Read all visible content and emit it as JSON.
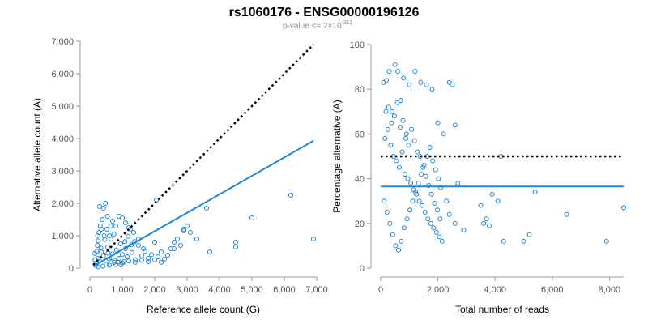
{
  "title": "rs1060176 - ENSG00000196126",
  "subtitle_prefix": "p-value <= 2×10",
  "subtitle_exponent": "-311",
  "colors": {
    "points": "#1f86d6",
    "fit": "#1f86d6",
    "reference": "#000000"
  },
  "chart_data": [
    {
      "type": "scatter",
      "xlabel": "Reference allele count (G)",
      "ylabel": "Alternative allele count (A)",
      "xlim": [
        0,
        7000
      ],
      "ylim": [
        0,
        7000
      ],
      "xticks": [
        0,
        1000,
        2000,
        3000,
        4000,
        5000,
        6000,
        7000
      ],
      "yticks": [
        0,
        1000,
        2000,
        3000,
        4000,
        5000,
        6000,
        7000
      ],
      "xtick_labels": [
        "0",
        "1,000",
        "2,000",
        "3,000",
        "4,000",
        "5,000",
        "6,000",
        "7,000"
      ],
      "ytick_labels": [
        "0",
        "1,000",
        "2,000",
        "3,000",
        "4,000",
        "5,000",
        "6,000",
        "7,000"
      ],
      "reference_line": {
        "name": "expected (50%)",
        "style": "dotted",
        "points": [
          [
            100,
            100
          ],
          [
            6900,
            6900
          ]
        ]
      },
      "fit_line": {
        "name": "fit",
        "style": "solid",
        "points": [
          [
            100,
            55
          ],
          [
            6900,
            3930
          ]
        ]
      },
      "points": [
        [
          200,
          150
        ],
        [
          250,
          300
        ],
        [
          300,
          220
        ],
        [
          350,
          500
        ],
        [
          420,
          380
        ],
        [
          500,
          120
        ],
        [
          550,
          650
        ],
        [
          600,
          280
        ],
        [
          650,
          900
        ],
        [
          700,
          440
        ],
        [
          750,
          180
        ],
        [
          820,
          560
        ],
        [
          900,
          300
        ],
        [
          950,
          750
        ],
        [
          1000,
          420
        ],
        [
          1050,
          200
        ],
        [
          1100,
          600
        ],
        [
          1150,
          350
        ],
        [
          1200,
          1250
        ],
        [
          1300,
          480
        ],
        [
          1400,
          260
        ],
        [
          1500,
          700
        ],
        [
          1600,
          380
        ],
        [
          1700,
          520
        ],
        [
          1800,
          300
        ],
        [
          150,
          450
        ],
        [
          180,
          80
        ],
        [
          230,
          700
        ],
        [
          280,
          1100
        ],
        [
          320,
          1300
        ],
        [
          380,
          1500
        ],
        [
          420,
          1850
        ],
        [
          480,
          2000
        ],
        [
          300,
          1900
        ],
        [
          520,
          1200
        ],
        [
          600,
          1000
        ],
        [
          700,
          1450
        ],
        [
          800,
          1300
        ],
        [
          900,
          1600
        ],
        [
          1000,
          1550
        ],
        [
          1100,
          1400
        ],
        [
          1250,
          1200
        ],
        [
          1350,
          1100
        ],
        [
          1500,
          900
        ],
        [
          1650,
          600
        ],
        [
          1900,
          420
        ],
        [
          2000,
          800
        ],
        [
          2100,
          350
        ],
        [
          2200,
          500
        ],
        [
          2300,
          280
        ],
        [
          2400,
          400
        ],
        [
          2500,
          600
        ],
        [
          2600,
          800
        ],
        [
          2700,
          900
        ],
        [
          2800,
          700
        ],
        [
          2900,
          1200
        ],
        [
          3000,
          1300
        ],
        [
          3100,
          1100
        ],
        [
          3300,
          900
        ],
        [
          3700,
          500
        ],
        [
          3600,
          1850
        ],
        [
          4500,
          800
        ],
        [
          4500,
          650
        ],
        [
          5000,
          1550
        ],
        [
          6200,
          2250
        ],
        [
          6900,
          900
        ],
        [
          2050,
          2100
        ],
        [
          2900,
          1150
        ],
        [
          2600,
          600
        ],
        [
          250,
          40
        ],
        [
          400,
          60
        ],
        [
          600,
          90
        ],
        [
          800,
          110
        ],
        [
          1000,
          160
        ],
        [
          1200,
          220
        ],
        [
          1400,
          180
        ],
        [
          1600,
          240
        ],
        [
          1800,
          200
        ],
        [
          2000,
          260
        ],
        [
          2200,
          180
        ],
        [
          160,
          260
        ],
        [
          210,
          520
        ],
        [
          260,
          840
        ],
        [
          340,
          620
        ],
        [
          460,
          880
        ],
        [
          560,
          460
        ],
        [
          660,
          320
        ],
        [
          760,
          240
        ],
        [
          860,
          180
        ],
        [
          960,
          100
        ],
        [
          1080,
          820
        ],
        [
          1180,
          980
        ],
        [
          1280,
          720
        ],
        [
          1380,
          820
        ],
        [
          440,
          1000
        ],
        [
          360,
          1200
        ],
        [
          240,
          1000
        ],
        [
          540,
          1600
        ],
        [
          640,
          1300
        ],
        [
          740,
          1050
        ]
      ]
    },
    {
      "type": "scatter",
      "xlabel": "Total number of reads",
      "ylabel": "Percentage alternative (A)",
      "xlim": [
        0,
        8500
      ],
      "ylim": [
        0,
        100
      ],
      "xticks": [
        0,
        2000,
        4000,
        6000,
        8000
      ],
      "yticks": [
        0,
        20,
        40,
        60,
        80,
        100
      ],
      "xtick_labels": [
        "0",
        "2,000",
        "4,000",
        "6,000",
        "8,000"
      ],
      "ytick_labels": [
        "0",
        "20",
        "40",
        "60",
        "80",
        "100"
      ],
      "reference_line": {
        "name": "expected (50%)",
        "style": "dotted",
        "points": [
          [
            0,
            50
          ],
          [
            8500,
            50
          ]
        ]
      },
      "fit_line": {
        "name": "fit",
        "style": "solid",
        "points": [
          [
            0,
            36.5
          ],
          [
            8500,
            36.5
          ]
        ]
      },
      "points": [
        [
          100,
          83
        ],
        [
          200,
          84
        ],
        [
          300,
          88
        ],
        [
          400,
          70
        ],
        [
          500,
          91
        ],
        [
          600,
          88
        ],
        [
          700,
          75
        ],
        [
          800,
          85
        ],
        [
          900,
          60
        ],
        [
          1000,
          82
        ],
        [
          1200,
          88
        ],
        [
          1400,
          83
        ],
        [
          1600,
          82
        ],
        [
          1800,
          80
        ],
        [
          2000,
          65
        ],
        [
          2200,
          60
        ],
        [
          2400,
          83
        ],
        [
          2500,
          82
        ],
        [
          2600,
          64
        ],
        [
          150,
          58
        ],
        [
          250,
          62
        ],
        [
          350,
          55
        ],
        [
          450,
          50
        ],
        [
          550,
          48
        ],
        [
          650,
          45
        ],
        [
          750,
          52
        ],
        [
          850,
          42
        ],
        [
          950,
          40
        ],
        [
          1050,
          38
        ],
        [
          1150,
          35
        ],
        [
          1250,
          33
        ],
        [
          1350,
          30
        ],
        [
          1450,
          28
        ],
        [
          1550,
          25
        ],
        [
          1650,
          22
        ],
        [
          1750,
          20
        ],
        [
          1850,
          18
        ],
        [
          1950,
          16
        ],
        [
          2050,
          14
        ],
        [
          2150,
          12
        ],
        [
          120,
          30
        ],
        [
          220,
          25
        ],
        [
          320,
          20
        ],
        [
          420,
          15
        ],
        [
          520,
          10
        ],
        [
          620,
          8
        ],
        [
          720,
          12
        ],
        [
          820,
          18
        ],
        [
          920,
          22
        ],
        [
          1020,
          26
        ],
        [
          1120,
          30
        ],
        [
          1220,
          34
        ],
        [
          1320,
          38
        ],
        [
          1420,
          42
        ],
        [
          1520,
          46
        ],
        [
          1620,
          50
        ],
        [
          1720,
          54
        ],
        [
          1820,
          48
        ],
        [
          1920,
          44
        ],
        [
          2020,
          40
        ],
        [
          2100,
          36
        ],
        [
          2300,
          30
        ],
        [
          2400,
          24
        ],
        [
          2600,
          20
        ],
        [
          2700,
          38
        ],
        [
          3500,
          28
        ],
        [
          3600,
          20
        ],
        [
          3700,
          22
        ],
        [
          3800,
          19
        ],
        [
          3900,
          33
        ],
        [
          4100,
          30
        ],
        [
          4200,
          50
        ],
        [
          4300,
          12
        ],
        [
          5000,
          12
        ],
        [
          5200,
          15
        ],
        [
          5400,
          34
        ],
        [
          6500,
          24
        ],
        [
          7900,
          12
        ],
        [
          8500,
          27
        ],
        [
          2900,
          17
        ],
        [
          180,
          70
        ],
        [
          280,
          72
        ],
        [
          380,
          65
        ],
        [
          480,
          68
        ],
        [
          580,
          74
        ],
        [
          680,
          63
        ],
        [
          780,
          66
        ],
        [
          880,
          58
        ],
        [
          980,
          55
        ],
        [
          1080,
          62
        ],
        [
          1180,
          57
        ],
        [
          1280,
          52
        ],
        [
          1380,
          50
        ],
        [
          1480,
          45
        ],
        [
          1580,
          41
        ],
        [
          1680,
          37
        ],
        [
          1780,
          33
        ],
        [
          1880,
          29
        ],
        [
          1980,
          26
        ],
        [
          2080,
          22
        ]
      ]
    }
  ]
}
